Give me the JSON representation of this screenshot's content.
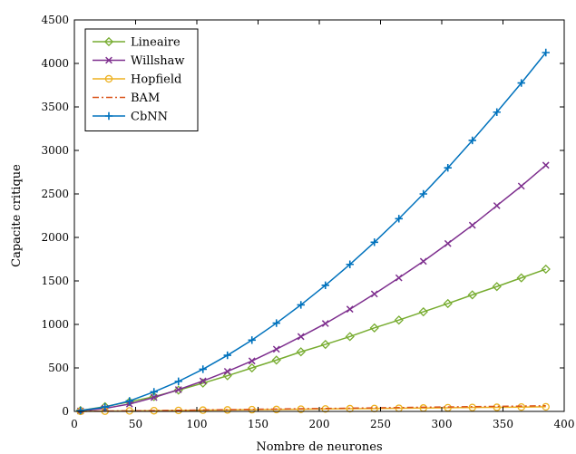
{
  "chart_data": {
    "type": "line",
    "title": "",
    "xlabel": "Nombre de neurones",
    "ylabel": "Capacite critique",
    "xlim": [
      0,
      400
    ],
    "ylim": [
      0,
      4500
    ],
    "xticks": [
      0,
      50,
      100,
      150,
      200,
      250,
      300,
      350,
      400
    ],
    "yticks": [
      0,
      500,
      1000,
      1500,
      2000,
      2500,
      3000,
      3500,
      4000,
      4500
    ],
    "grid": false,
    "legend_position": "top-left",
    "x": [
      5,
      25,
      45,
      65,
      85,
      105,
      125,
      145,
      165,
      185,
      205,
      225,
      245,
      265,
      285,
      305,
      325,
      345,
      365,
      385
    ],
    "series": [
      {
        "name": "Lineaire",
        "color": "#77AC30",
        "marker": "diamond",
        "line_style": "solid",
        "values": [
          10,
          55,
          110,
          170,
          245,
          325,
          410,
          500,
          590,
          685,
          770,
          860,
          960,
          1050,
          1145,
          1240,
          1340,
          1435,
          1535,
          1635
        ]
      },
      {
        "name": "Willshaw",
        "color": "#7E2F8E",
        "marker": "x",
        "line_style": "solid",
        "values": [
          5,
          35,
          85,
          160,
          250,
          350,
          460,
          580,
          715,
          860,
          1010,
          1175,
          1350,
          1535,
          1725,
          1930,
          2140,
          2365,
          2590,
          2830
        ]
      },
      {
        "name": "Hopfield",
        "color": "#EDB120",
        "marker": "circle",
        "line_style": "solid",
        "values": [
          1,
          3,
          6,
          8,
          11,
          14,
          17,
          20,
          22,
          25,
          28,
          31,
          33,
          36,
          39,
          42,
          45,
          47,
          50,
          53
        ]
      },
      {
        "name": "BAM",
        "color": "#D95319",
        "marker": "none",
        "line_style": "dashdot",
        "values": [
          1,
          4,
          7,
          10,
          13,
          17,
          20,
          24,
          27,
          31,
          34,
          37,
          41,
          44,
          48,
          51,
          55,
          58,
          61,
          65
        ]
      },
      {
        "name": "CbNN",
        "color": "#0072BD",
        "marker": "plus",
        "line_style": "solid",
        "values": [
          10,
          50,
          120,
          225,
          345,
          485,
          645,
          820,
          1015,
          1225,
          1450,
          1690,
          1945,
          2215,
          2500,
          2800,
          3115,
          3440,
          3775,
          4125
        ]
      }
    ]
  }
}
